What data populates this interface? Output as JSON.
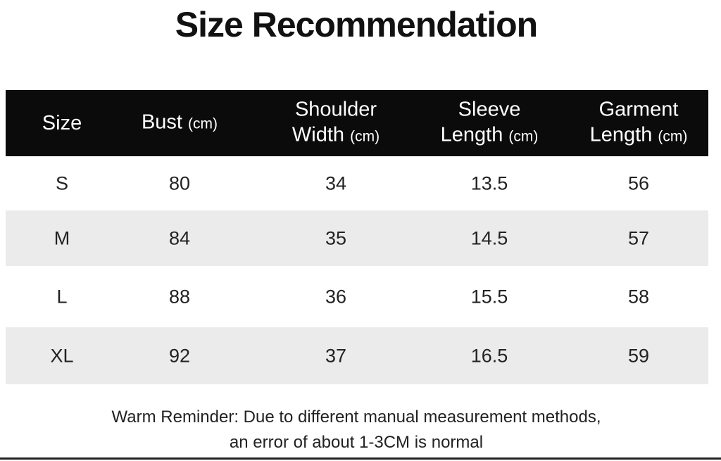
{
  "title": "Size Recommendation",
  "table": {
    "header": [
      {
        "lines": [
          "Size"
        ]
      },
      {
        "lines": [
          "Bust"
        ],
        "unit": "(cm)"
      },
      {
        "lines": [
          "Shoulder",
          "Width"
        ],
        "unit": "(cm)"
      },
      {
        "lines": [
          "Sleeve",
          "Length"
        ],
        "unit": "(cm)"
      },
      {
        "lines": [
          "Garment",
          "Length"
        ],
        "unit": "(cm)"
      }
    ],
    "rows": [
      [
        "S",
        80,
        34,
        13.5,
        56
      ],
      [
        "M",
        84,
        35,
        14.5,
        57
      ],
      [
        "L",
        88,
        36,
        15.5,
        58
      ],
      [
        "XL",
        92,
        37,
        16.5,
        59
      ]
    ]
  },
  "reminder": [
    "Warm Reminder: Due to different manual measurement methods,",
    "an error of about 1-3CM is normal"
  ]
}
